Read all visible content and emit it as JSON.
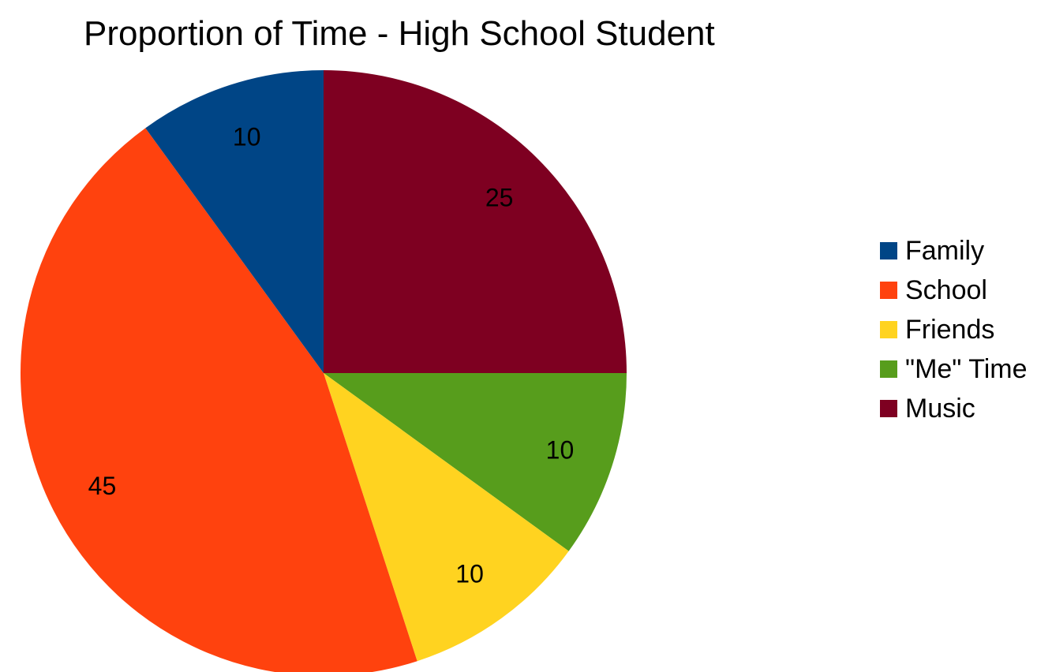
{
  "chart_data": {
    "type": "pie",
    "title": "Proportion of Time - High School Student",
    "legend_position": "right",
    "slices": [
      {
        "name": "Music",
        "value": 25,
        "color": "#7e0021"
      },
      {
        "name": "\"Me\" Time",
        "value": 10,
        "color": "#579d1c"
      },
      {
        "name": "Friends",
        "value": 10,
        "color": "#ffd320"
      },
      {
        "name": "School",
        "value": 45,
        "color": "#ff420e"
      },
      {
        "name": "Family",
        "value": 10,
        "color": "#004586"
      }
    ],
    "legend": [
      {
        "name": "Family",
        "color": "#004586"
      },
      {
        "name": "School",
        "color": "#ff420e"
      },
      {
        "name": "Friends",
        "color": "#ffd320"
      },
      {
        "name": "\"Me\" Time",
        "color": "#579d1c"
      },
      {
        "name": "Music",
        "color": "#7e0021"
      }
    ]
  }
}
